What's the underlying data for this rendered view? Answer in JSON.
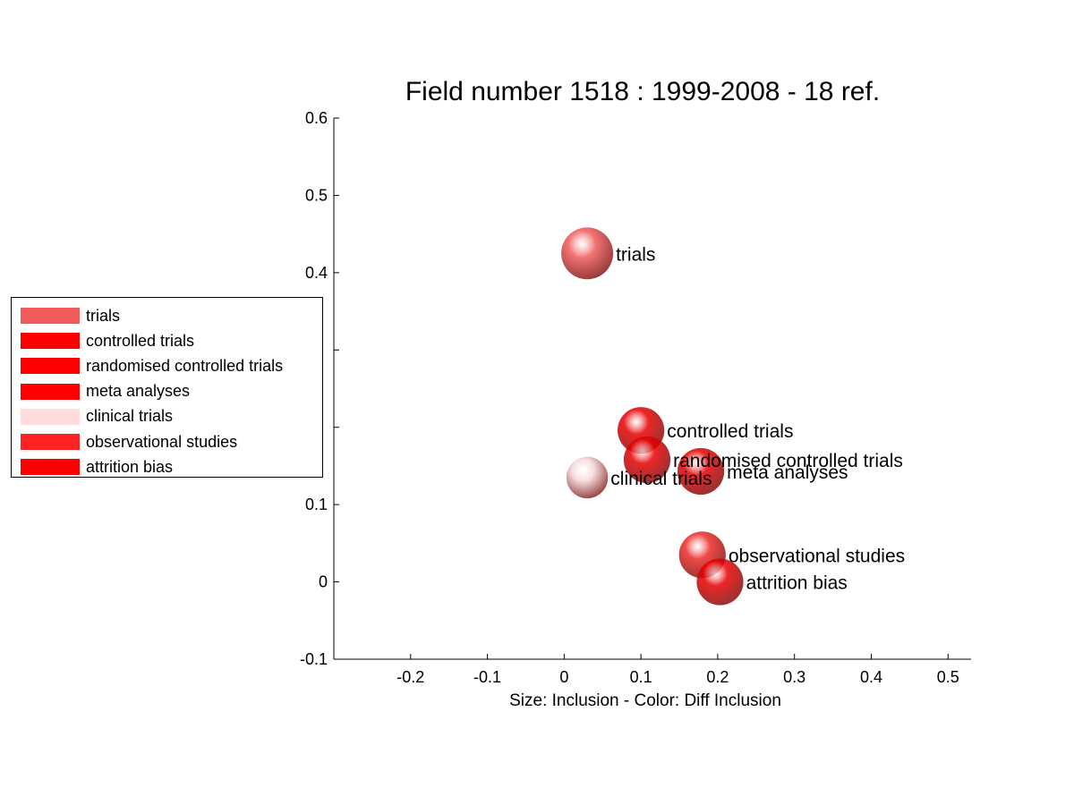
{
  "chart_data": {
    "type": "scatter",
    "title": "Field number 1518 : 1999-2008  - 18 ref.",
    "xlabel": "Size: Inclusion - Color: Diff Inclusion",
    "ylabel": "",
    "xlim": [
      -0.3,
      0.53
    ],
    "ylim": [
      -0.1,
      0.6
    ],
    "xticks": [
      -0.2,
      -0.1,
      0,
      0.1,
      0.2,
      0.3,
      0.4,
      0.5
    ],
    "xtick_labels": [
      "-0.2",
      "-0.1",
      "0",
      "0.1",
      "0.2",
      "0.3",
      "0.4",
      "0.5"
    ],
    "yticks": [
      -0.1,
      0,
      0.1,
      0.2,
      0.3,
      0.4,
      0.5,
      0.6
    ],
    "ytick_labels": [
      "-0.1",
      "0",
      "0.1",
      "",
      "",
      "0.4",
      "0.5",
      "0.6"
    ],
    "grid": false,
    "legend_position": "left",
    "points": [
      {
        "label": "trials",
        "x": 0.03,
        "y": 0.425,
        "size": 1.0,
        "color": "#f05a5a"
      },
      {
        "label": "controlled trials",
        "x": 0.1,
        "y": 0.196,
        "size": 0.9,
        "color": "#e80000"
      },
      {
        "label": "randomised controlled trials",
        "x": 0.108,
        "y": 0.158,
        "size": 0.9,
        "color": "#e80000"
      },
      {
        "label": "meta analyses",
        "x": 0.178,
        "y": 0.143,
        "size": 0.9,
        "color": "#e80000"
      },
      {
        "label": "clinical trials",
        "x": 0.03,
        "y": 0.135,
        "size": 0.8,
        "color": "#f5d8d8"
      },
      {
        "label": "observational studies",
        "x": 0.18,
        "y": 0.035,
        "size": 0.9,
        "color": "#ee2a2a"
      },
      {
        "label": "attrition bias",
        "x": 0.203,
        "y": 0.0,
        "size": 0.9,
        "color": "#e80000"
      }
    ]
  },
  "legend": {
    "entries": [
      {
        "label": "trials",
        "color": "#f05a5a"
      },
      {
        "label": "controlled trials",
        "color": "#ff0000"
      },
      {
        "label": "randomised controlled trials",
        "color": "#ff0000"
      },
      {
        "label": "meta analyses",
        "color": "#ff0000"
      },
      {
        "label": "clinical trials",
        "color": "#ffdcdc"
      },
      {
        "label": "observational studies",
        "color": "#ff2222"
      },
      {
        "label": "attrition bias",
        "color": "#ff0000"
      }
    ]
  }
}
